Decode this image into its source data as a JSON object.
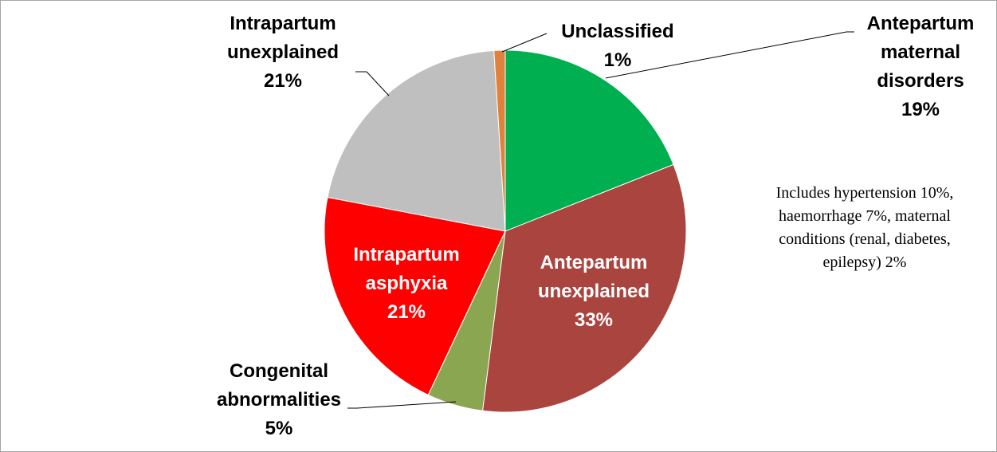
{
  "chart_data": {
    "type": "pie",
    "categories": [
      "Antepartum maternal disorders",
      "Antepartum unexplained",
      "Congenital abnormalities",
      "Intrapartum asphyxia",
      "Intrapartum unexplained",
      "Unclassified"
    ],
    "values": [
      19,
      33,
      5,
      21,
      21,
      1
    ],
    "value_labels": [
      "19%",
      "33%",
      "5%",
      "21%",
      "21%",
      "1%"
    ],
    "colors": [
      "#00b050",
      "#a9443f",
      "#8aa650",
      "#ff0000",
      "#bfbfbf",
      "#e0823c"
    ],
    "annotation": "Includes hypertension 10%, haemorrhage 7%, maternal conditions (renal, diabetes, epilepsy) 2%"
  }
}
